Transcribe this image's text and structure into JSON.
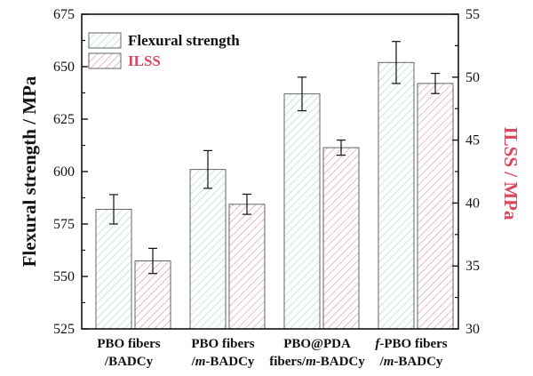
{
  "chart_data": {
    "type": "bar",
    "categories": [
      {
        "line1": "PBO fibers",
        "line2_prefix": "/",
        "line2_italic": "",
        "line2_rest": "BADCy",
        "line1_italic": "",
        "line1_rest": "PBO fibers"
      },
      {
        "line1": "PBO fibers",
        "line2_prefix": "/",
        "line2_italic": "m",
        "line2_rest": "-BADCy",
        "line1_italic": "",
        "line1_rest": "PBO fibers"
      },
      {
        "line1": "PBO@PDA",
        "line2_prefix": "fibers/",
        "line2_italic": "m",
        "line2_rest": "-BADCy",
        "line1_italic": "",
        "line1_rest": "PBO@PDA"
      },
      {
        "line1": "f-PBO fibers",
        "line2_prefix": "/",
        "line2_italic": "m",
        "line2_rest": "-BADCy",
        "line1_italic": "f",
        "line1_rest": "-PBO fibers"
      }
    ],
    "series": [
      {
        "name": "Flexural strength",
        "axis": "left",
        "values": [
          582,
          601,
          637,
          652
        ],
        "errors": [
          7,
          9,
          8,
          10
        ]
      },
      {
        "name": "ILSS",
        "axis": "right",
        "values": [
          35.4,
          39.9,
          44.4,
          49.5
        ],
        "errors": [
          1.0,
          0.8,
          0.6,
          0.8
        ]
      }
    ],
    "ylabel": "Flexural strength / MPa",
    "y2label": "ILSS / MPa",
    "ylim": [
      525,
      675
    ],
    "y2lim": [
      30,
      55
    ],
    "yticks": [
      525,
      550,
      575,
      600,
      625,
      650,
      675
    ],
    "y2ticks": [
      30,
      35,
      40,
      45,
      50,
      55
    ],
    "colors": {
      "flexural": "#9fd3bf",
      "ilss": "#d98a9a",
      "ilss_text": "#d8485f",
      "axis": "#111111"
    }
  }
}
